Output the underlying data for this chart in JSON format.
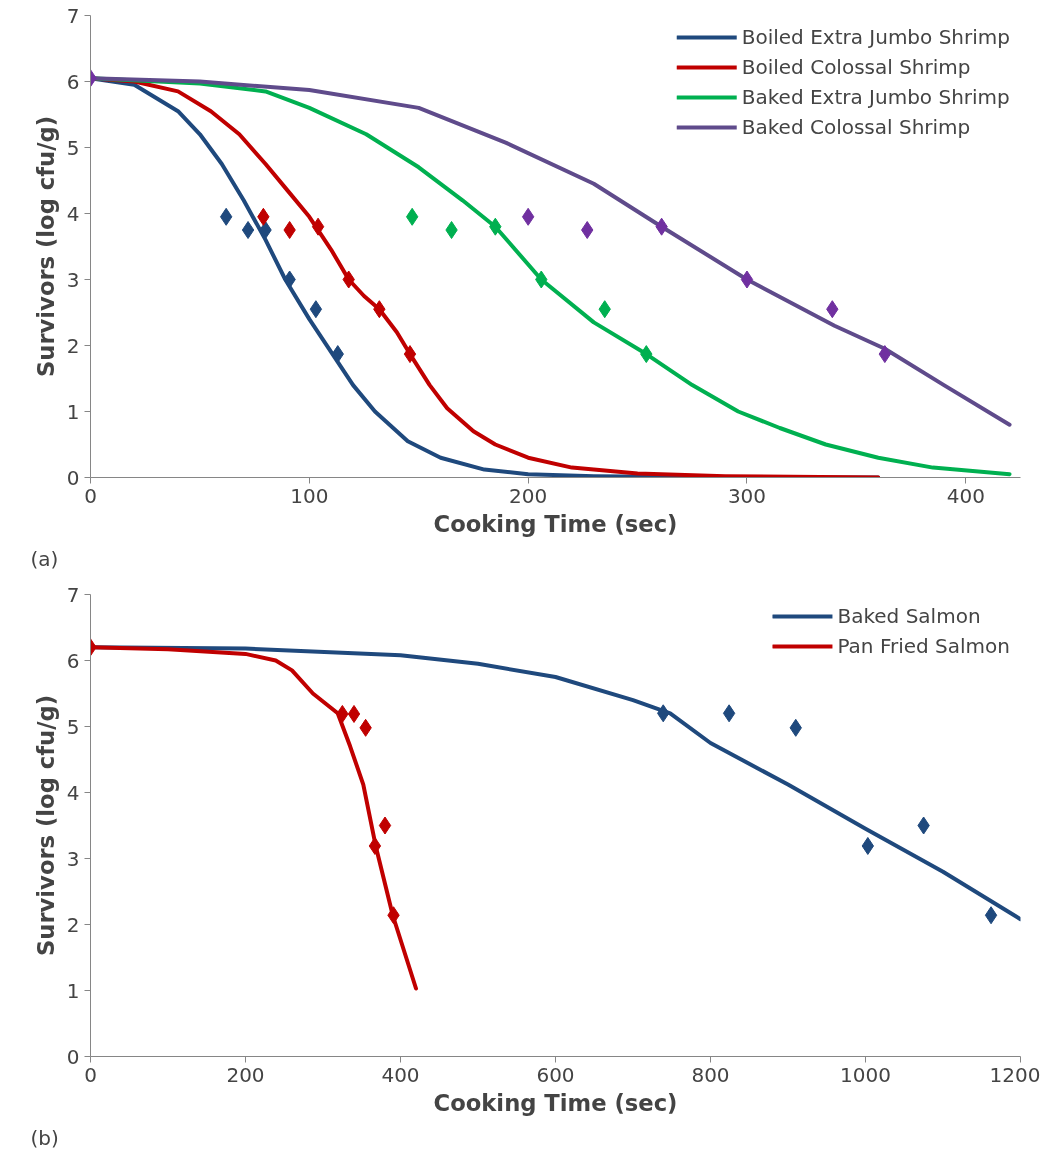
{
  "chart_data": [
    {
      "type": "line",
      "xlabel": "Cooking Time (sec)",
      "ylabel": "Survivors (log cfu/g)",
      "annotations": [
        "(a)"
      ],
      "xlim": [
        0,
        425
      ],
      "xticks": [
        0,
        100,
        200,
        300,
        400
      ],
      "ylim": [
        0,
        7
      ],
      "yticks": [
        0,
        1,
        2,
        3,
        4,
        5,
        6,
        7
      ],
      "grid": false,
      "legend": "top right",
      "marker": "none",
      "line_style": "solid",
      "series": [
        {
          "name": "Boiled Extra Jumbo Shrimp",
          "color": "#1f497d",
          "x": [
            0,
            20,
            40,
            50,
            60,
            70,
            80,
            89,
            100,
            110,
            120,
            130,
            145,
            160,
            180,
            200,
            230,
            260,
            300,
            360
          ],
          "values": [
            6.05,
            5.95,
            5.55,
            5.2,
            4.75,
            4.2,
            3.6,
            3.0,
            2.4,
            1.9,
            1.4,
            1.0,
            0.55,
            0.3,
            0.12,
            0.05,
            0.02,
            0.01,
            0,
            0
          ]
        },
        {
          "name": "Boiled Colossal Shrimp",
          "color": "#c00000",
          "x": [
            0,
            20,
            40,
            55,
            68,
            80,
            90,
            100,
            110,
            118,
            125,
            132,
            140,
            146,
            155,
            163,
            175,
            185,
            200,
            220,
            250,
            290,
            360
          ],
          "values": [
            6.05,
            6.0,
            5.85,
            5.55,
            5.2,
            4.75,
            4.35,
            3.95,
            3.45,
            3.0,
            2.75,
            2.55,
            2.2,
            1.87,
            1.4,
            1.05,
            0.7,
            0.5,
            0.3,
            0.15,
            0.06,
            0.02,
            0
          ]
        },
        {
          "name": "Baked Extra Jumbo Shrimp",
          "color": "#00b050",
          "x": [
            0,
            50,
            80,
            100,
            126,
            150,
            170,
            185,
            206,
            230,
            254,
            275,
            296,
            315,
            336,
            360,
            385,
            420
          ],
          "values": [
            6.05,
            5.97,
            5.85,
            5.6,
            5.2,
            4.7,
            4.2,
            3.8,
            3.0,
            2.35,
            1.87,
            1.4,
            1.0,
            0.75,
            0.5,
            0.3,
            0.15,
            0.05
          ]
        },
        {
          "name": "Baked Colossal Shrimp",
          "color": "#5f4b8b",
          "x": [
            0,
            50,
            100,
            150,
            190,
            230,
            261,
            300,
            340,
            363,
            390,
            420
          ],
          "values": [
            6.05,
            6.0,
            5.87,
            5.6,
            5.07,
            4.45,
            3.8,
            3.0,
            2.3,
            1.95,
            1.4,
            0.8
          ]
        },
        {
          "type": "scatter",
          "marker": "diamond",
          "color": "#1f497d",
          "x": [
            62,
            72,
            80,
            91,
            103,
            113
          ],
          "values": [
            3.95,
            3.75,
            3.75,
            3.0,
            2.55,
            1.87
          ]
        },
        {
          "type": "scatter",
          "marker": "diamond",
          "color": "#c00000",
          "x": [
            79,
            91,
            104,
            118,
            132,
            146
          ],
          "values": [
            3.95,
            3.75,
            3.8,
            3.0,
            2.55,
            1.87
          ]
        },
        {
          "type": "scatter",
          "marker": "diamond",
          "color": "#00b050",
          "x": [
            147,
            165,
            185,
            206,
            235,
            254
          ],
          "values": [
            3.95,
            3.75,
            3.8,
            3.0,
            2.55,
            1.87
          ]
        },
        {
          "type": "scatter",
          "marker": "diamond",
          "color": "#7030a0",
          "x": [
            0,
            200,
            227,
            261,
            300,
            339,
            363
          ],
          "values": [
            6.05,
            3.95,
            3.75,
            3.8,
            3.0,
            2.55,
            1.87
          ]
        }
      ]
    },
    {
      "type": "line",
      "xlabel": "Cooking Time (sec)",
      "ylabel": "Survivors (log cfu/g)",
      "annotations": [
        "(b)"
      ],
      "xlim": [
        0,
        1200
      ],
      "xticks": [
        0,
        200,
        400,
        600,
        800,
        1000,
        1200
      ],
      "ylim": [
        0,
        7
      ],
      "yticks": [
        0,
        1,
        2,
        3,
        4,
        5,
        6,
        7
      ],
      "grid": false,
      "legend": "top right",
      "marker": "none",
      "line_style": "solid",
      "series": [
        {
          "name": "Baked Salmon",
          "color": "#1f497d",
          "x": [
            0,
            200,
            400,
            500,
            600,
            700,
            748,
            800,
            900,
            1000,
            1100,
            1200
          ],
          "values": [
            6.2,
            6.18,
            6.08,
            5.95,
            5.75,
            5.4,
            5.2,
            4.75,
            4.12,
            3.45,
            2.8,
            2.08
          ]
        },
        {
          "name": "Pan Fried Salmon",
          "color": "#c00000",
          "x": [
            0,
            100,
            200,
            239,
            260,
            287,
            319,
            335,
            352,
            368,
            390,
            420
          ],
          "values": [
            6.2,
            6.17,
            6.1,
            6.0,
            5.85,
            5.5,
            5.2,
            4.7,
            4.12,
            3.19,
            2.14,
            1.03
          ]
        },
        {
          "type": "scatter",
          "marker": "diamond",
          "color": "#1f497d",
          "x": [
            739,
            824,
            910,
            1003,
            1075,
            1162
          ],
          "values": [
            5.2,
            5.2,
            4.98,
            3.19,
            3.5,
            2.14
          ]
        },
        {
          "type": "scatter",
          "marker": "diamond",
          "color": "#c00000",
          "x": [
            0,
            325,
            340,
            355,
            367,
            380,
            391
          ],
          "values": [
            6.2,
            5.19,
            5.19,
            4.98,
            3.19,
            3.5,
            2.14
          ]
        }
      ]
    }
  ]
}
